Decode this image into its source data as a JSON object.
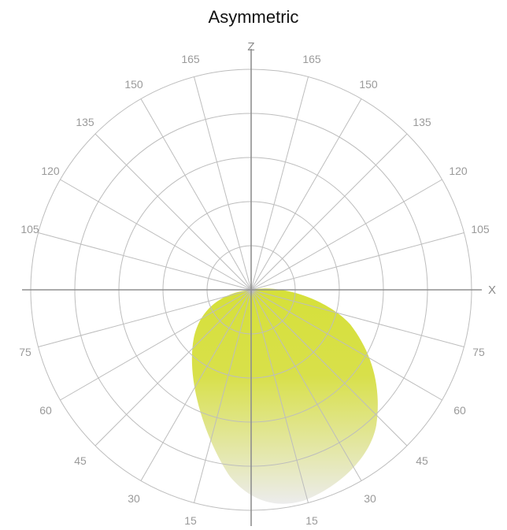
{
  "title": "Asymmetric",
  "axes": {
    "z_label": "Z",
    "x_label": "X"
  },
  "colors": {
    "grid": "#bdbdbd",
    "axis": "#8f8f8f",
    "lobe_top": "#d6e03a",
    "lobe_bottom": "#ececec"
  },
  "angle_labels": {
    "upper_left": [
      "165",
      "150",
      "135",
      "120",
      "105"
    ],
    "upper_right": [
      "165",
      "150",
      "135",
      "120",
      "105"
    ],
    "lower_left": [
      "75",
      "60",
      "45",
      "30",
      "15"
    ],
    "lower_right": [
      "75",
      "60",
      "45",
      "30",
      "15"
    ]
  }
}
